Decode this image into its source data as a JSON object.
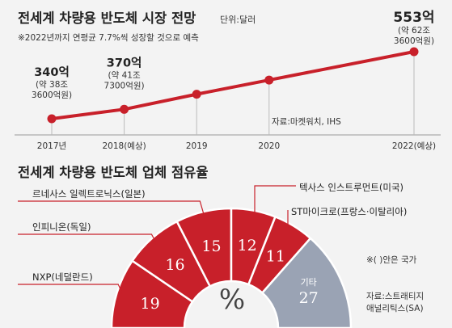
{
  "colors": {
    "red": "#c8202a",
    "gray": "#9aa3b4",
    "guide": "#bbbbbb",
    "text": "#222222",
    "axis": "#555555"
  },
  "chart_data": [
    {
      "type": "line",
      "title": "전세계 차량용 반도체 시장 전망",
      "unit": "단위:달러",
      "subtitle": "※2022년까지 연평균 7.7%씩 성장할 것으로 예측",
      "source": "자료:마켓워치, IHS",
      "x": [
        "2017년",
        "2018(예상)",
        "2019",
        "2020",
        "2022(예상)"
      ],
      "x_years": [
        2017,
        2018,
        2019,
        2020,
        2022
      ],
      "series": [
        {
          "values": [
            340,
            370,
            418,
            463,
            553
          ]
        }
      ],
      "ylabel": "",
      "labels": [
        {
          "index": 0,
          "main": "340억",
          "sub1": "(약 38조",
          "sub2": "3600억원)"
        },
        {
          "index": 1,
          "main": "370억",
          "sub1": "(약 41조",
          "sub2": "7300억원)"
        },
        {
          "index": 4,
          "main": "553억",
          "sub1": "(약 62조",
          "sub2": "3600억원)"
        }
      ]
    },
    {
      "type": "pie",
      "title": "전세계 차량용 반도체 업체 점유율",
      "center_label": "%",
      "categories": [
        "NXP(네덜란드)",
        "인피니온(독일)",
        "르네사스 일렉트로닉스(일본)",
        "텍사스 인스트루먼트(미국)",
        "ST마이크로(프랑스·이탈리아)",
        "기타"
      ],
      "values": [
        19,
        16,
        15,
        12,
        11,
        27
      ],
      "note": "※( )안은 국가",
      "source_lines": [
        "자료:스트래티지",
        "애널리틱스(SA)"
      ]
    }
  ]
}
